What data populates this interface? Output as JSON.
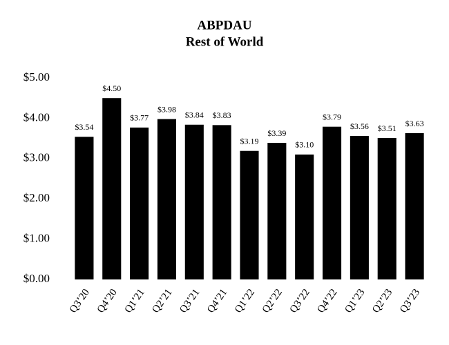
{
  "chart_data": {
    "type": "bar",
    "title": "ABPDAU",
    "subtitle": "Rest of World",
    "categories": [
      "Q3’20",
      "Q4’20",
      "Q1’21",
      "Q2’21",
      "Q3’21",
      "Q4’21",
      "Q1’22",
      "Q2’22",
      "Q3’22",
      "Q4’22",
      "Q1’23",
      "Q2’23",
      "Q3’23"
    ],
    "values": [
      3.54,
      4.5,
      3.77,
      3.98,
      3.84,
      3.83,
      3.19,
      3.39,
      3.1,
      3.79,
      3.56,
      3.51,
      3.63
    ],
    "value_labels": [
      "$3.54",
      "$4.50",
      "$3.77",
      "$3.98",
      "$3.84",
      "$3.83",
      "$3.19",
      "$3.39",
      "$3.10",
      "$3.79",
      "$3.56",
      "$3.51",
      "$3.63"
    ],
    "color": "#000000",
    "ylim": [
      0,
      5
    ],
    "yticks": [
      {
        "value": 0,
        "label": "$0.00"
      },
      {
        "value": 1,
        "label": "$1.00"
      },
      {
        "value": 2,
        "label": "$2.00"
      },
      {
        "value": 3,
        "label": "$3.00"
      },
      {
        "value": 4,
        "label": "$4.00"
      },
      {
        "value": 5,
        "label": "$5.00"
      }
    ],
    "grid": false
  }
}
